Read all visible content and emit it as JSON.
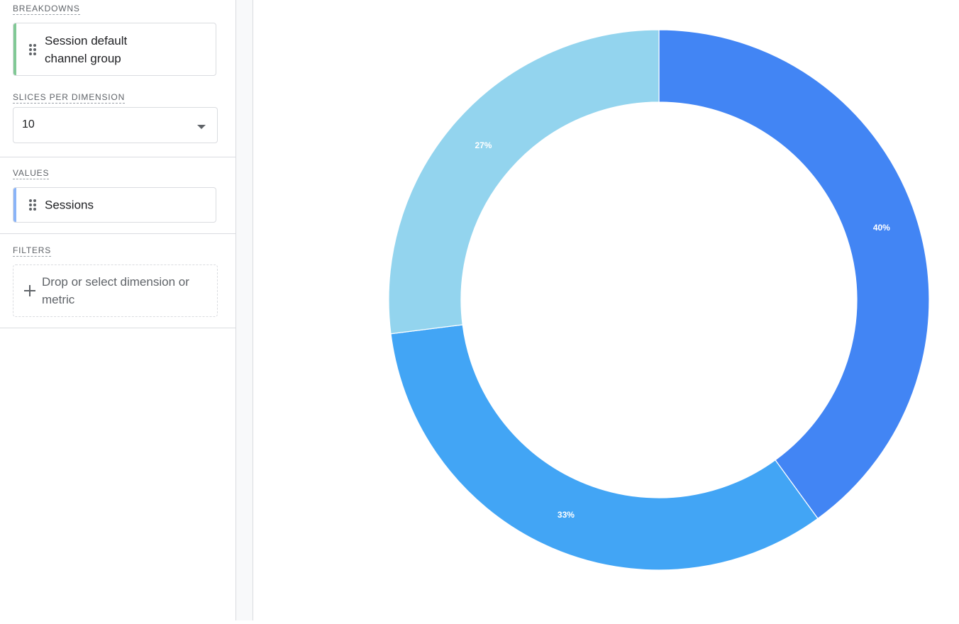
{
  "sidebar": {
    "breakdowns": {
      "label": "BREAKDOWNS",
      "chip_text": "Session default channel group",
      "accent_color": "#81c995"
    },
    "slices": {
      "label": "SLICES PER DIMENSION",
      "value": "10"
    },
    "values": {
      "label": "VALUES",
      "chip_text": "Sessions",
      "accent_color": "#8ab4f8"
    },
    "filters": {
      "label": "FILTERS",
      "placeholder": "Drop or select dimension or metric"
    }
  },
  "chart_data": {
    "type": "pie",
    "donut": true,
    "start_angle_deg": 0,
    "direction": "clockwise",
    "slices": [
      {
        "value": 40,
        "label": "40%",
        "color": "#4285f4"
      },
      {
        "value": 33,
        "label": "33%",
        "color": "#42a5f5"
      },
      {
        "value": 27,
        "label": "27%",
        "color": "#93d4ee"
      }
    ]
  }
}
